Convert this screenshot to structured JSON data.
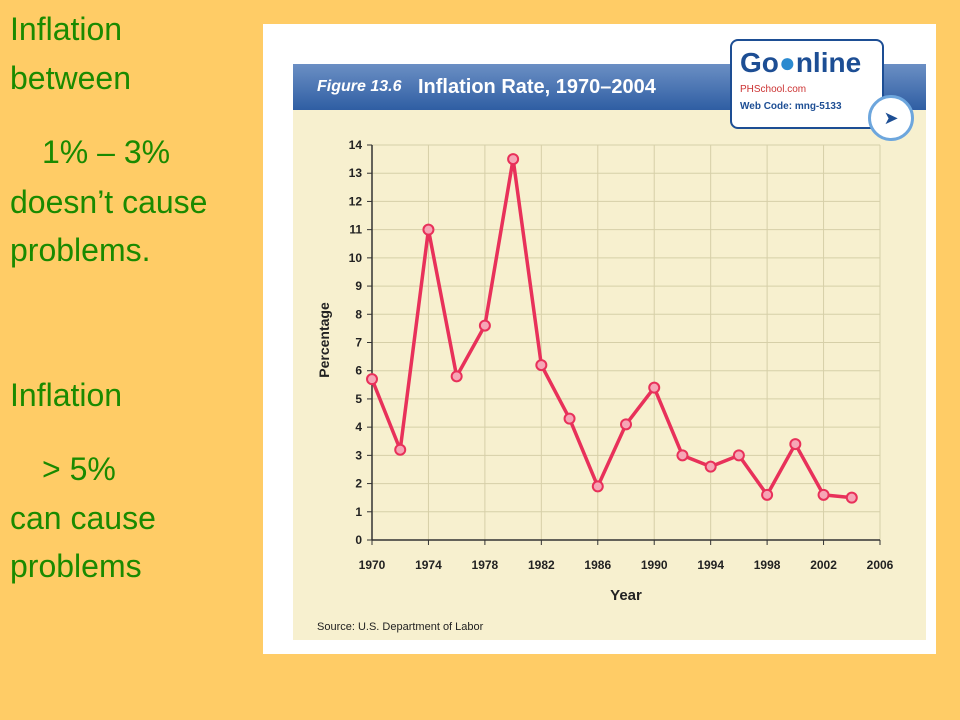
{
  "notes": {
    "block1": [
      "Inflation",
      "between",
      "1% – 3%",
      "doesn’t cause",
      "problems."
    ],
    "block2": [
      "Inflation",
      "> 5%",
      "can cause",
      "problems"
    ]
  },
  "figure": {
    "number": "Figure 13.6",
    "title": "Inflation Rate, 1970–2004",
    "source": "Source: U.S. Department of Labor"
  },
  "badge": {
    "logo_go": "Go",
    "logo_nline": "nline",
    "site": "PHSchool.com",
    "web_code": "Web Code: mng-5133"
  },
  "colors": {
    "line": "#e8315a",
    "marker_fill": "#f6a6b6",
    "plot_bg": "#f7f0cf",
    "title_bar": "#2f5ea3",
    "note_text": "#1a8a00",
    "slide_bg": "#ffcc66"
  },
  "chart_data": {
    "type": "line",
    "title": "Inflation Rate, 1970–2004",
    "xlabel": "Year",
    "ylabel": "Percentage",
    "xlim": [
      1970,
      2006
    ],
    "ylim": [
      0,
      14
    ],
    "x_ticks": [
      1970,
      1974,
      1978,
      1982,
      1986,
      1990,
      1994,
      1998,
      2002,
      2006
    ],
    "y_ticks": [
      0,
      1,
      2,
      3,
      4,
      5,
      6,
      7,
      8,
      9,
      10,
      11,
      12,
      13,
      14
    ],
    "grid": true,
    "series": [
      {
        "x": [
          1970,
          1972,
          1974,
          1976,
          1978,
          1980,
          1982,
          1984,
          1986,
          1988,
          1990,
          1992,
          1994,
          1996,
          1998,
          2000,
          2002,
          2004
        ],
        "y": [
          5.7,
          3.2,
          11.0,
          5.8,
          7.6,
          13.5,
          6.2,
          4.3,
          1.9,
          4.1,
          5.4,
          3.0,
          2.6,
          3.0,
          1.6,
          3.4,
          1.6,
          1.5
        ]
      }
    ]
  }
}
